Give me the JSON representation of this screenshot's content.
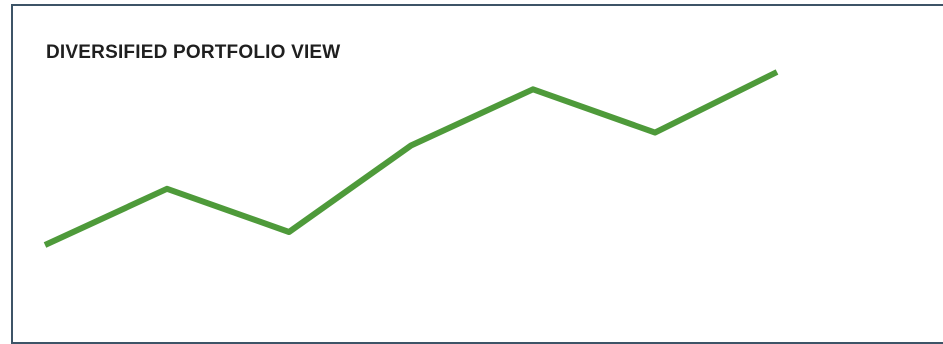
{
  "chart_data": {
    "type": "line",
    "title": "DIVERSIFIED PORTFOLIO VIEW",
    "xlabel": "",
    "ylabel": "",
    "x": [
      1,
      2,
      3,
      4,
      5,
      6,
      7
    ],
    "series": [
      {
        "values": [
          20,
          46,
          26,
          66,
          92,
          72,
          100
        ]
      }
    ],
    "ylim": [
      0,
      115
    ],
    "grid": false,
    "legend": "none",
    "line_color": "#4e9a3a"
  },
  "colors": {
    "border": "#3d5467",
    "title": "#1f1f1f"
  }
}
